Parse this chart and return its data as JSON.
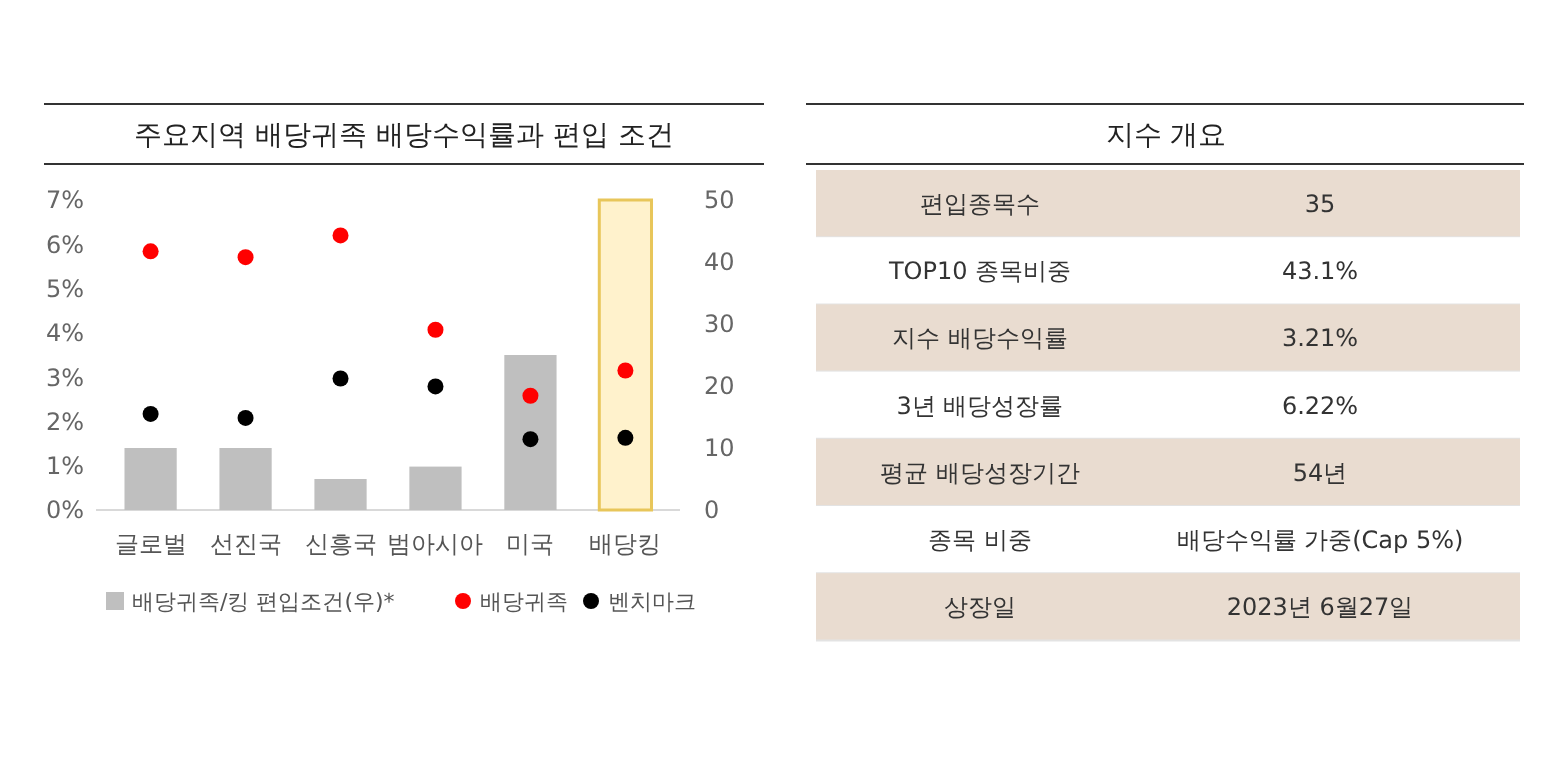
{
  "chart_data": [
    {
      "type": "bar",
      "title": "주요지역 배당귀족 배당수익률과 편입 조건",
      "categories": [
        "글로벌",
        "선진국",
        "신흥국",
        "범아시아",
        "미국",
        "배당킹"
      ],
      "series": [
        {
          "type": "bar",
          "name": "배당귀족/킹 편입조건(우)*",
          "axis": "y2",
          "color": "#bfbfbf",
          "colors": [
            "#bfbfbf",
            "#bfbfbf",
            "#bfbfbf",
            "#bfbfbf",
            "#bfbfbf",
            "#fff2cc"
          ],
          "values": [
            10,
            10,
            5,
            7,
            25,
            50
          ]
        },
        {
          "type": "scatter",
          "name": "배당귀족",
          "color": "#ff0000",
          "values": [
            5.84,
            5.71,
            6.2,
            4.07,
            2.58,
            3.15
          ]
        },
        {
          "type": "scatter",
          "name": "벤치마크",
          "color": "#000000",
          "values": [
            2.17,
            2.08,
            2.97,
            2.79,
            1.6,
            1.63
          ]
        }
      ],
      "ylim": [
        0,
        7
      ],
      "yticks": [
        {
          "value": 0,
          "label": "0%"
        },
        {
          "value": 1,
          "label": "1%"
        },
        {
          "value": 2,
          "label": "2%"
        },
        {
          "value": 3,
          "label": "3%"
        },
        {
          "value": 4,
          "label": "4%"
        },
        {
          "value": 5,
          "label": "5%"
        },
        {
          "value": 6,
          "label": "6%"
        },
        {
          "value": 7,
          "label": "7%"
        }
      ],
      "y2lim": [
        0,
        50
      ],
      "y2ticks": [
        0,
        10,
        20,
        30,
        40,
        50
      ],
      "grid": false,
      "legend": "bottom",
      "marker": "circle"
    },
    {
      "type": "other",
      "title": "지수 개요",
      "categories": [
        "편입종목수",
        "TOP10 종목비중",
        "지수 배당수익률",
        "3년 배당성장률",
        "평균 배당성장기간",
        "종목 비중",
        "상장일"
      ],
      "value_labels": [
        "35",
        "43.1%",
        "3.21%",
        "6.22%",
        "54년",
        "배당수익률 가중(Cap 5%)",
        "2023년 6월27일"
      ],
      "colors": [
        "#e9dcd0",
        "#ffffff",
        "#e9dcd0",
        "#ffffff",
        "#e9dcd0",
        "#ffffff",
        "#e9dcd0"
      ]
    }
  ]
}
